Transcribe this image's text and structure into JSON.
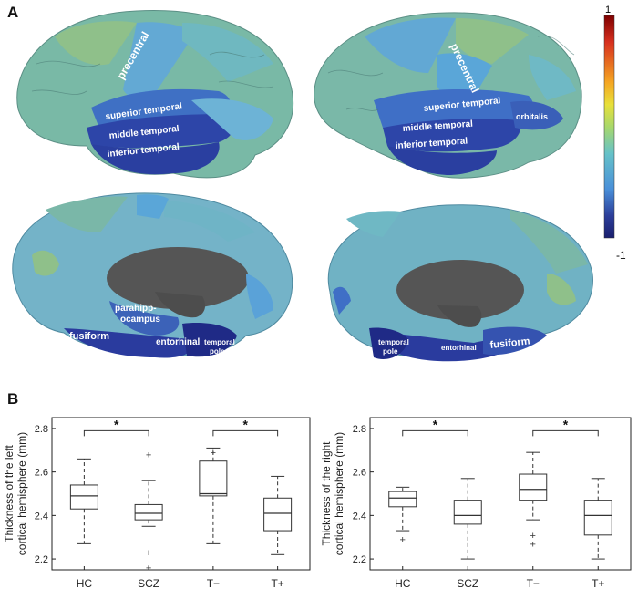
{
  "panel_a": {
    "letter": "A",
    "colorbar": {
      "max_label": "1",
      "min_label": "-1",
      "colors": [
        "#7f0000",
        "#d7301f",
        "#f5a623",
        "#e8e03a",
        "#a8d86b",
        "#66c2c8",
        "#4a90d9",
        "#2c3e9a",
        "#1a1f6e"
      ]
    },
    "brains": {
      "lateral_left": {
        "labels": [
          "precentral",
          "superior temporal",
          "middle temporal",
          "inferior temporal"
        ]
      },
      "lateral_right": {
        "labels": [
          "precentral",
          "superior temporal",
          "middle temporal",
          "inferior temporal",
          "orbitalis"
        ]
      },
      "medial_left": {
        "labels": [
          "parahipp-",
          "ocampus",
          "fusiform",
          "entorhinal",
          "temporal",
          "pole"
        ]
      },
      "medial_right": {
        "labels": [
          "temporal",
          "pole",
          "entorhinal",
          "fusiform"
        ]
      }
    },
    "colors": {
      "green": "#7fb77e",
      "teal": "#5fb3b3",
      "lightblue": "#63b0d6",
      "blue": "#3f6fc6",
      "darkblue": "#2b3a9c",
      "grey": "#555555"
    }
  },
  "panel_b": {
    "letter": "B",
    "chart_data": [
      {
        "type": "box",
        "ylabel_line1": "Thickness of the left",
        "ylabel_line2": "cortical hemisphere (mm)",
        "categories": [
          "HC",
          "SCZ",
          "T−",
          "T+"
        ],
        "yticks": [
          "2.2",
          "2.4",
          "2.6",
          "2.8"
        ],
        "ylim": [
          2.15,
          2.85
        ],
        "boxes": [
          {
            "whisker_low": 2.27,
            "q1": 2.43,
            "median": 2.49,
            "q3": 2.54,
            "whisker_high": 2.66,
            "outliers": []
          },
          {
            "whisker_low": 2.35,
            "q1": 2.38,
            "median": 2.41,
            "q3": 2.45,
            "whisker_high": 2.56,
            "outliers": [
              2.68,
              2.23,
              2.16
            ]
          },
          {
            "whisker_low": 2.27,
            "q1": 2.49,
            "median": 2.5,
            "q3": 2.65,
            "whisker_high": 2.71,
            "outliers": [
              2.69
            ]
          },
          {
            "whisker_low": 2.22,
            "q1": 2.33,
            "median": 2.41,
            "q3": 2.48,
            "whisker_high": 2.58,
            "outliers": []
          }
        ],
        "significance": [
          {
            "from": 0,
            "to": 1,
            "label": "*",
            "y": 2.79
          },
          {
            "from": 2,
            "to": 3,
            "label": "*",
            "y": 2.79
          }
        ]
      },
      {
        "type": "box",
        "ylabel_line1": "Thickness of the right",
        "ylabel_line2": "cortical hemisphere (mm)",
        "categories": [
          "HC",
          "SCZ",
          "T−",
          "T+"
        ],
        "yticks": [
          "2.2",
          "2.4",
          "2.6",
          "2.8"
        ],
        "ylim": [
          2.15,
          2.85
        ],
        "boxes": [
          {
            "whisker_low": 2.33,
            "q1": 2.44,
            "median": 2.48,
            "q3": 2.51,
            "whisker_high": 2.53,
            "outliers": [
              2.29
            ]
          },
          {
            "whisker_low": 2.2,
            "q1": 2.36,
            "median": 2.4,
            "q3": 2.47,
            "whisker_high": 2.57,
            "outliers": []
          },
          {
            "whisker_low": 2.38,
            "q1": 2.47,
            "median": 2.52,
            "q3": 2.59,
            "whisker_high": 2.69,
            "outliers": [
              2.31,
              2.27
            ]
          },
          {
            "whisker_low": 2.2,
            "q1": 2.31,
            "median": 2.4,
            "q3": 2.47,
            "whisker_high": 2.57,
            "outliers": []
          }
        ],
        "significance": [
          {
            "from": 0,
            "to": 1,
            "label": "*",
            "y": 2.79
          },
          {
            "from": 2,
            "to": 3,
            "label": "*",
            "y": 2.79
          }
        ]
      }
    ]
  }
}
